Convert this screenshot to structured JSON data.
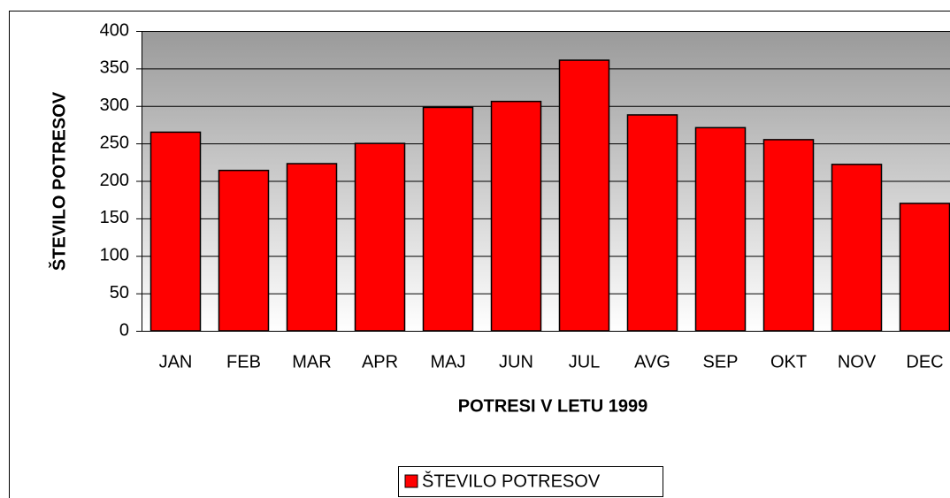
{
  "chart_data": {
    "type": "bar",
    "x_label": "POTRESI V LETU 1999",
    "y_label": "ŠTEVILO POTRESOV",
    "categories": [
      "JAN",
      "FEB",
      "MAR",
      "APR",
      "MAJ",
      "JUN",
      "JUL",
      "AVG",
      "SEP",
      "OKT",
      "NOV",
      "DEC"
    ],
    "series": [
      {
        "name": "ŠTEVILO POTRESOV",
        "color": "#ff0000",
        "values": [
          265,
          214,
          223,
          250,
          298,
          306,
          361,
          288,
          271,
          255,
          222,
          170
        ]
      }
    ],
    "ylim": [
      0,
      400
    ],
    "yticks": [
      0,
      50,
      100,
      150,
      200,
      250,
      300,
      350,
      400
    ],
    "grid": true,
    "legend": "bottom"
  }
}
